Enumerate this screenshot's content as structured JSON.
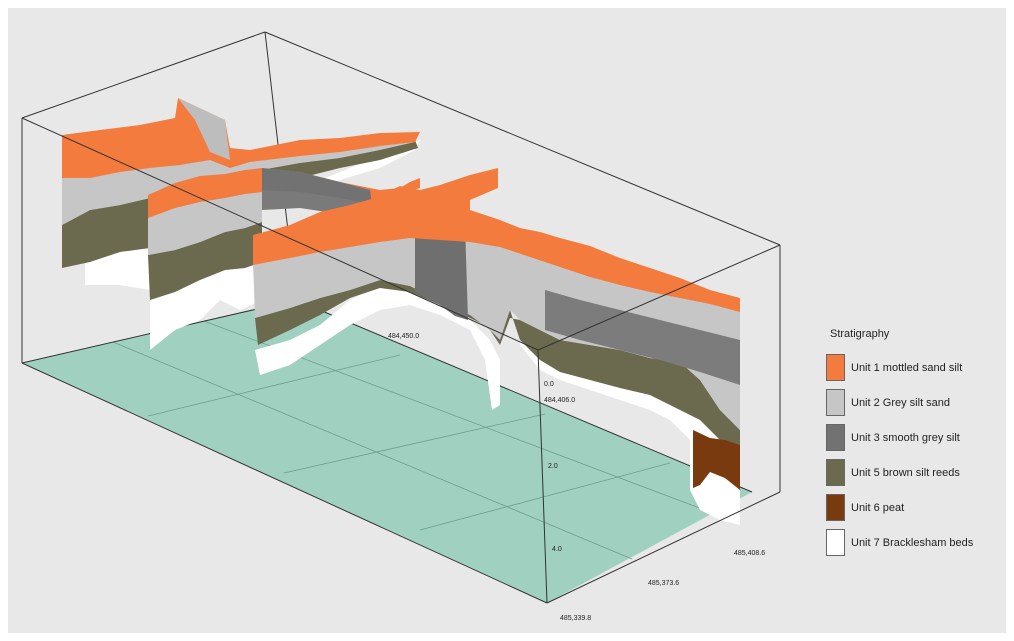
{
  "scene": {
    "background": "#e8e8e8",
    "base_plane_color": "#9fd0c0",
    "box_line_color": "#333333",
    "axis_labels": {
      "northing_1": "484,450.0",
      "northing_2": "484,406.0",
      "depth_0": "0.0",
      "depth_2": "2.0",
      "depth_4": "4.0",
      "easting_1": "485,408.6",
      "easting_2": "485,373.6",
      "easting_3": "485,339.8"
    }
  },
  "legend": {
    "title": "Stratigraphy",
    "items": [
      {
        "label": "Unit 1 mottled sand silt",
        "color": "#f47b3e"
      },
      {
        "label": "Unit 2 Grey silt sand",
        "color": "#c6c6c6"
      },
      {
        "label": "Unit 3 smooth grey silt",
        "color": "#727272"
      },
      {
        "label": "Unit 5 brown silt reeds",
        "color": "#6b6a4f"
      },
      {
        "label": "Unit 6 peat",
        "color": "#7a3a10"
      },
      {
        "label": "Unit 7 Bracklesham beds",
        "color": "#ffffff"
      }
    ]
  }
}
